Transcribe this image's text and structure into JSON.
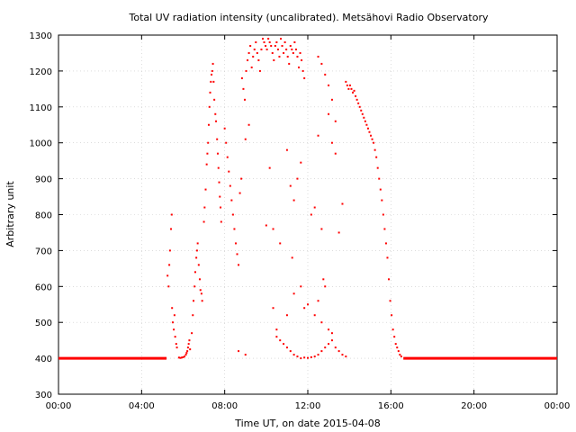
{
  "chart_data": {
    "type": "scatter",
    "title": "Total UV radiation intensity (uncalibrated). Metsähovi Radio Observatory",
    "xlabel": "Time UT, on date 2015-04-08",
    "ylabel": "Arbitrary unit",
    "xlim": [
      "00:00",
      "24:00"
    ],
    "ylim": [
      300,
      1300
    ],
    "x_ticks": [
      "00:00",
      "04:00",
      "08:00",
      "12:00",
      "16:00",
      "20:00",
      "00:00"
    ],
    "y_ticks": [
      "300",
      "400",
      "500",
      "600",
      "700",
      "800",
      "900",
      "1000",
      "1100",
      "1200",
      "1300"
    ],
    "grid": true,
    "marker_color": "#ff0000",
    "series": [
      {
        "name": "",
        "baseline": {
          "value": 400,
          "ranges": [
            [
              "00:00",
              "05:12"
            ],
            [
              "16:36",
              "24:00"
            ]
          ]
        },
        "points": [
          [
            "05:15",
            630
          ],
          [
            "05:18",
            600
          ],
          [
            "05:20",
            660
          ],
          [
            "05:22",
            700
          ],
          [
            "05:25",
            760
          ],
          [
            "05:27",
            800
          ],
          [
            "05:28",
            540
          ],
          [
            "05:30",
            500
          ],
          [
            "05:33",
            480
          ],
          [
            "05:35",
            520
          ],
          [
            "05:37",
            460
          ],
          [
            "05:40",
            440
          ],
          [
            "05:42",
            430
          ],
          [
            "05:48",
            402
          ],
          [
            "05:52",
            401
          ],
          [
            "05:56",
            402
          ],
          [
            "06:00",
            403
          ],
          [
            "06:04",
            405
          ],
          [
            "06:08",
            410
          ],
          [
            "06:10",
            415
          ],
          [
            "06:12",
            420
          ],
          [
            "06:14",
            430
          ],
          [
            "06:16",
            440
          ],
          [
            "06:18",
            450
          ],
          [
            "06:20",
            425
          ],
          [
            "06:25",
            470
          ],
          [
            "06:28",
            520
          ],
          [
            "06:30",
            560
          ],
          [
            "06:33",
            600
          ],
          [
            "06:35",
            640
          ],
          [
            "06:38",
            680
          ],
          [
            "06:40",
            700
          ],
          [
            "06:42",
            720
          ],
          [
            "06:45",
            660
          ],
          [
            "06:48",
            620
          ],
          [
            "06:50",
            590
          ],
          [
            "06:53",
            580
          ],
          [
            "06:55",
            560
          ],
          [
            "07:00",
            780
          ],
          [
            "07:02",
            820
          ],
          [
            "07:05",
            870
          ],
          [
            "07:08",
            940
          ],
          [
            "07:10",
            970
          ],
          [
            "07:12",
            1000
          ],
          [
            "07:14",
            1050
          ],
          [
            "07:16",
            1100
          ],
          [
            "07:18",
            1140
          ],
          [
            "07:20",
            1170
          ],
          [
            "07:22",
            1190
          ],
          [
            "07:24",
            1200
          ],
          [
            "07:26",
            1220
          ],
          [
            "07:28",
            1170
          ],
          [
            "07:30",
            1120
          ],
          [
            "07:33",
            1080
          ],
          [
            "07:35",
            1060
          ],
          [
            "07:38",
            1010
          ],
          [
            "07:40",
            970
          ],
          [
            "07:42",
            930
          ],
          [
            "07:44",
            890
          ],
          [
            "07:46",
            850
          ],
          [
            "07:48",
            820
          ],
          [
            "07:50",
            780
          ],
          [
            "08:00",
            1040
          ],
          [
            "08:04",
            1000
          ],
          [
            "08:08",
            960
          ],
          [
            "08:12",
            920
          ],
          [
            "08:16",
            880
          ],
          [
            "08:20",
            840
          ],
          [
            "08:24",
            800
          ],
          [
            "08:28",
            760
          ],
          [
            "08:32",
            720
          ],
          [
            "08:36",
            690
          ],
          [
            "08:40",
            660
          ],
          [
            "08:44",
            860
          ],
          [
            "08:48",
            900
          ],
          [
            "08:50",
            1180
          ],
          [
            "08:54",
            1150
          ],
          [
            "08:58",
            1120
          ],
          [
            "09:02",
            1200
          ],
          [
            "09:06",
            1230
          ],
          [
            "09:10",
            1250
          ],
          [
            "09:14",
            1270
          ],
          [
            "09:18",
            1210
          ],
          [
            "09:22",
            1240
          ],
          [
            "09:26",
            1260
          ],
          [
            "09:30",
            1280
          ],
          [
            "09:34",
            1250
          ],
          [
            "09:38",
            1230
          ],
          [
            "09:42",
            1200
          ],
          [
            "09:46",
            1260
          ],
          [
            "09:50",
            1290
          ],
          [
            "09:54",
            1280
          ],
          [
            "09:58",
            1270
          ],
          [
            "10:02",
            1260
          ],
          [
            "10:06",
            1290
          ],
          [
            "10:10",
            1280
          ],
          [
            "10:14",
            1270
          ],
          [
            "10:18",
            1250
          ],
          [
            "10:22",
            1230
          ],
          [
            "10:26",
            1270
          ],
          [
            "10:30",
            1280
          ],
          [
            "10:34",
            1260
          ],
          [
            "10:38",
            1240
          ],
          [
            "10:42",
            1290
          ],
          [
            "10:46",
            1270
          ],
          [
            "10:50",
            1250
          ],
          [
            "10:54",
            1280
          ],
          [
            "10:58",
            1260
          ],
          [
            "11:02",
            1240
          ],
          [
            "11:06",
            1220
          ],
          [
            "11:10",
            1270
          ],
          [
            "11:14",
            1260
          ],
          [
            "11:18",
            1250
          ],
          [
            "11:22",
            1280
          ],
          [
            "11:26",
            1260
          ],
          [
            "11:30",
            1240
          ],
          [
            "11:34",
            1210
          ],
          [
            "11:38",
            1250
          ],
          [
            "11:42",
            1230
          ],
          [
            "11:46",
            1200
          ],
          [
            "11:50",
            1180
          ],
          [
            "09:00",
            1010
          ],
          [
            "09:10",
            1050
          ],
          [
            "10:00",
            770
          ],
          [
            "10:10",
            930
          ],
          [
            "10:20",
            760
          ],
          [
            "10:40",
            720
          ],
          [
            "11:00",
            980
          ],
          [
            "11:10",
            880
          ],
          [
            "11:20",
            840
          ],
          [
            "11:15",
            680
          ],
          [
            "11:30",
            900
          ],
          [
            "11:40",
            945
          ],
          [
            "12:10",
            800
          ],
          [
            "12:20",
            820
          ],
          [
            "12:30",
            1020
          ],
          [
            "12:40",
            760
          ],
          [
            "12:45",
            620
          ],
          [
            "13:00",
            1080
          ],
          [
            "13:10",
            1000
          ],
          [
            "13:20",
            970
          ],
          [
            "13:30",
            750
          ],
          [
            "13:40",
            830
          ],
          [
            "12:30",
            1240
          ],
          [
            "12:40",
            1220
          ],
          [
            "12:50",
            1190
          ],
          [
            "13:00",
            1160
          ],
          [
            "13:10",
            1120
          ],
          [
            "13:20",
            1060
          ],
          [
            "13:50",
            1170
          ],
          [
            "13:54",
            1160
          ],
          [
            "13:58",
            1150
          ],
          [
            "14:02",
            1160
          ],
          [
            "14:06",
            1150
          ],
          [
            "14:10",
            1140
          ],
          [
            "14:14",
            1145
          ],
          [
            "14:18",
            1130
          ],
          [
            "14:22",
            1120
          ],
          [
            "14:26",
            1110
          ],
          [
            "14:30",
            1100
          ],
          [
            "14:34",
            1090
          ],
          [
            "14:38",
            1080
          ],
          [
            "14:42",
            1070
          ],
          [
            "14:46",
            1060
          ],
          [
            "14:50",
            1050
          ],
          [
            "14:54",
            1040
          ],
          [
            "14:58",
            1030
          ],
          [
            "15:02",
            1020
          ],
          [
            "15:06",
            1010
          ],
          [
            "15:10",
            1000
          ],
          [
            "15:14",
            980
          ],
          [
            "15:18",
            960
          ],
          [
            "15:22",
            930
          ],
          [
            "15:26",
            900
          ],
          [
            "15:30",
            870
          ],
          [
            "15:34",
            840
          ],
          [
            "15:38",
            800
          ],
          [
            "15:42",
            760
          ],
          [
            "15:46",
            720
          ],
          [
            "15:50",
            680
          ],
          [
            "15:54",
            620
          ],
          [
            "15:58",
            560
          ],
          [
            "16:02",
            520
          ],
          [
            "16:06",
            480
          ],
          [
            "16:10",
            460
          ],
          [
            "16:14",
            440
          ],
          [
            "16:18",
            430
          ],
          [
            "16:22",
            420
          ],
          [
            "16:26",
            410
          ],
          [
            "16:30",
            405
          ],
          [
            "08:40",
            420
          ],
          [
            "09:00",
            410
          ],
          [
            "10:30",
            460
          ],
          [
            "10:40",
            450
          ],
          [
            "10:50",
            440
          ],
          [
            "11:00",
            430
          ],
          [
            "11:10",
            420
          ],
          [
            "11:20",
            410
          ],
          [
            "11:30",
            405
          ],
          [
            "11:40",
            400
          ],
          [
            "11:50",
            402
          ],
          [
            "12:00",
            401
          ],
          [
            "12:10",
            403
          ],
          [
            "12:20",
            405
          ],
          [
            "12:30",
            410
          ],
          [
            "12:40",
            420
          ],
          [
            "12:50",
            430
          ],
          [
            "13:00",
            440
          ],
          [
            "13:10",
            450
          ],
          [
            "13:20",
            430
          ],
          [
            "13:30",
            420
          ],
          [
            "13:40",
            410
          ],
          [
            "13:50",
            405
          ],
          [
            "10:20",
            540
          ],
          [
            "10:30",
            480
          ],
          [
            "11:00",
            520
          ],
          [
            "11:20",
            580
          ],
          [
            "11:40",
            600
          ],
          [
            "12:00",
            550
          ],
          [
            "12:20",
            520
          ],
          [
            "12:40",
            500
          ],
          [
            "13:00",
            480
          ],
          [
            "13:10",
            470
          ],
          [
            "12:50",
            600
          ],
          [
            "12:30",
            560
          ],
          [
            "11:50",
            540
          ]
        ]
      }
    ]
  }
}
